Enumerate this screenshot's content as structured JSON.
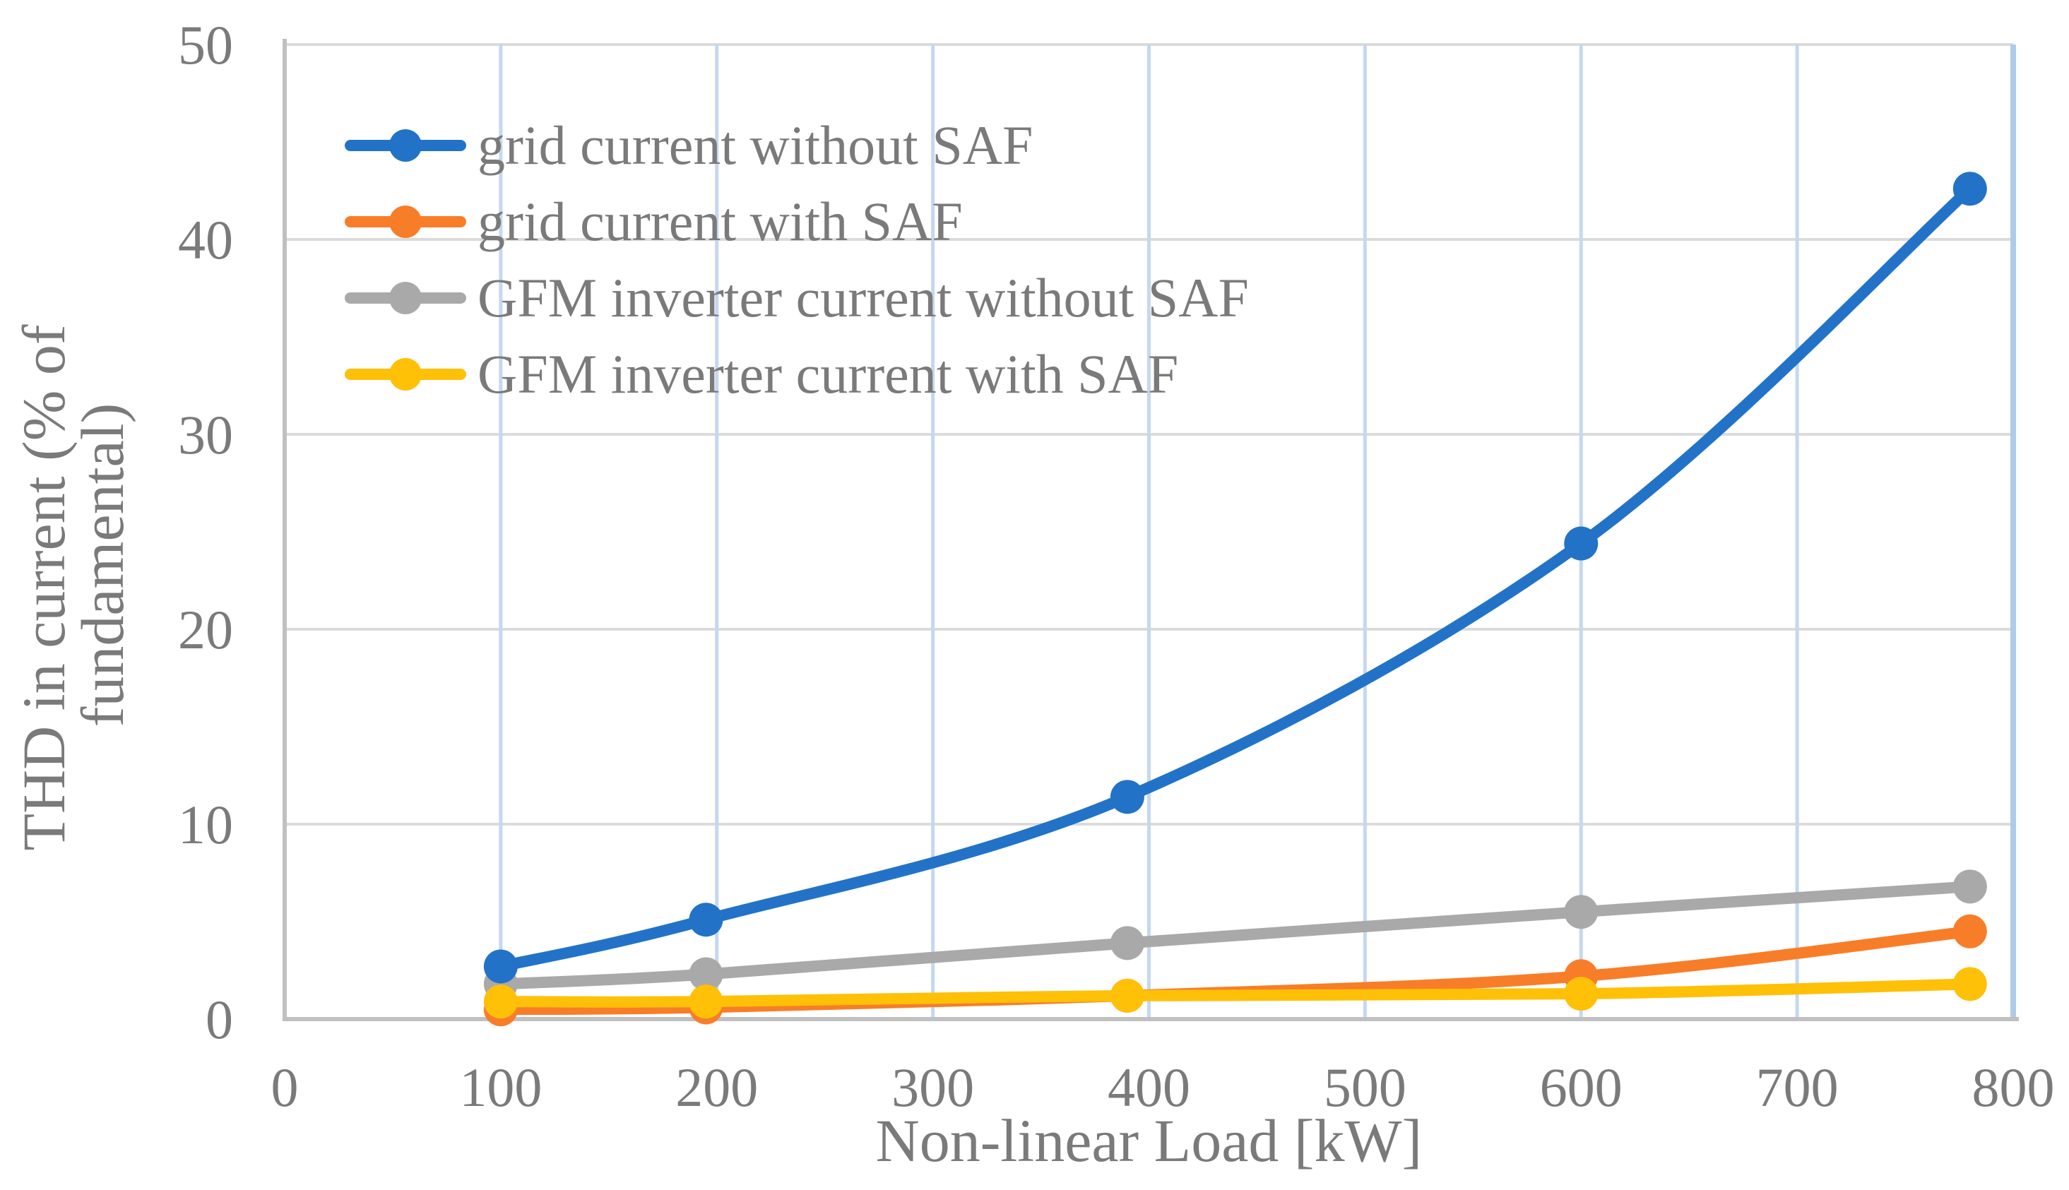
{
  "figure": {
    "background": "#ffffff",
    "text_color": "#7a7a7a"
  },
  "chart_data": {
    "type": "line",
    "title": "",
    "xlabel": "Non-linear Load [kW]",
    "ylabel": "THD in current (% of fundamental)",
    "ylabel_line1": "THD in current (% of",
    "ylabel_line2": "fundamental)",
    "xlim": [
      0,
      800
    ],
    "ylim": [
      0,
      50
    ],
    "x_ticks": [
      0,
      100,
      200,
      300,
      400,
      500,
      600,
      700,
      800
    ],
    "y_ticks": [
      0,
      10,
      20,
      30,
      40,
      50
    ],
    "grid": "on",
    "legend_position": "upper-left-inside",
    "smooth_lines": true,
    "x": [
      100,
      195,
      390,
      600,
      780
    ],
    "series": [
      {
        "name": "grid current without SAF",
        "color": "#2273c8",
        "values": [
          2.7,
          5.1,
          11.4,
          24.4,
          42.6
        ]
      },
      {
        "name": "grid current with SAF",
        "color": "#f87d28",
        "values": [
          0.5,
          0.6,
          1.2,
          2.2,
          4.5
        ]
      },
      {
        "name": "GFM inverter current without SAF",
        "color": "#a9a9a9",
        "values": [
          1.8,
          2.3,
          3.9,
          5.5,
          6.8
        ]
      },
      {
        "name": "GFM inverter current with SAF",
        "color": "#ffc008",
        "values": [
          0.9,
          0.9,
          1.2,
          1.3,
          1.8
        ]
      }
    ],
    "draw_order": [
      1,
      2,
      0,
      3
    ],
    "style": {
      "h_grid_color": "#dbdbdb",
      "v_grid_color": "#c4d8f0",
      "right_edge_color": "#afcbea",
      "axis_color": "#c0c0c0",
      "line_width": 16,
      "marker_radius": 24
    }
  }
}
